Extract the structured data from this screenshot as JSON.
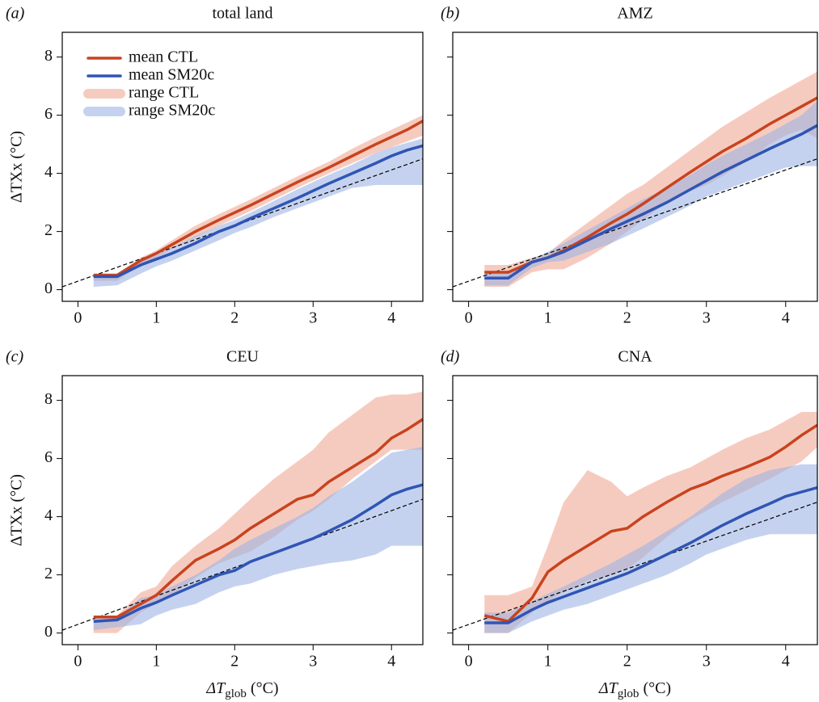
{
  "chart_data": [
    {
      "type": "line",
      "panel_label": "(a)",
      "title": "total land",
      "ylabel": "ΔTXx (°C)",
      "show_yticklabels": true,
      "legend": "upper left",
      "x": [
        0.2,
        0.5,
        0.8,
        1.0,
        1.2,
        1.5,
        1.8,
        2.0,
        2.2,
        2.5,
        2.8,
        3.0,
        3.2,
        3.5,
        3.8,
        4.0,
        4.2,
        4.4
      ],
      "series": [
        {
          "name": "mean CTL",
          "color": "#c8431e",
          "values": [
            0.5,
            0.5,
            1.0,
            1.25,
            1.55,
            2.0,
            2.4,
            2.65,
            2.9,
            3.3,
            3.7,
            3.95,
            4.2,
            4.6,
            5.0,
            5.25,
            5.5,
            5.8
          ]
        },
        {
          "name": "mean SM20c",
          "color": "#2f55b4",
          "values": [
            0.45,
            0.45,
            0.85,
            1.05,
            1.25,
            1.6,
            2.0,
            2.2,
            2.45,
            2.8,
            3.15,
            3.4,
            3.65,
            4.0,
            4.35,
            4.6,
            4.8,
            4.95
          ]
        }
      ],
      "ranges": [
        {
          "name": "range CTL",
          "color": "#f0a995",
          "lower": [
            0.3,
            0.3,
            0.85,
            1.1,
            1.4,
            1.8,
            2.2,
            2.45,
            2.7,
            3.1,
            3.5,
            3.75,
            4.0,
            4.35,
            4.7,
            4.9,
            5.1,
            5.3
          ],
          "upper": [
            0.55,
            0.55,
            1.1,
            1.35,
            1.7,
            2.2,
            2.6,
            2.85,
            3.1,
            3.5,
            3.9,
            4.15,
            4.4,
            4.85,
            5.25,
            5.5,
            5.75,
            6.0
          ]
        },
        {
          "name": "range SM20c",
          "color": "#9fb4e4",
          "lower": [
            0.1,
            0.15,
            0.55,
            0.8,
            1.0,
            1.35,
            1.7,
            1.95,
            2.15,
            2.5,
            2.8,
            3.0,
            3.2,
            3.5,
            3.6,
            3.6,
            3.6,
            3.6
          ],
          "upper": [
            0.55,
            0.55,
            1.0,
            1.2,
            1.45,
            1.85,
            2.2,
            2.4,
            2.65,
            3.05,
            3.45,
            3.7,
            3.95,
            4.3,
            4.7,
            4.9,
            5.05,
            5.2
          ]
        }
      ],
      "reference": {
        "x": [
          -0.2,
          4.4
        ],
        "y": [
          0.1,
          4.5
        ]
      },
      "xlim": [
        -0.2,
        4.4
      ],
      "ylim": [
        -0.4,
        8.85
      ],
      "xticks": [
        0,
        1,
        2,
        3,
        4
      ],
      "yticks": [
        0,
        2,
        4,
        6,
        8
      ]
    },
    {
      "type": "line",
      "panel_label": "(b)",
      "title": "AMZ",
      "show_yticklabels": false,
      "x": [
        0.2,
        0.5,
        0.8,
        1.0,
        1.2,
        1.5,
        1.8,
        2.0,
        2.2,
        2.5,
        2.8,
        3.0,
        3.2,
        3.5,
        3.8,
        4.0,
        4.2,
        4.4
      ],
      "series": [
        {
          "color": "#c8431e",
          "values": [
            0.6,
            0.6,
            0.95,
            1.1,
            1.35,
            1.8,
            2.3,
            2.6,
            2.95,
            3.5,
            4.05,
            4.4,
            4.75,
            5.2,
            5.7,
            6.0,
            6.3,
            6.6
          ]
        },
        {
          "color": "#2f55b4",
          "values": [
            0.4,
            0.4,
            0.95,
            1.1,
            1.3,
            1.7,
            2.1,
            2.35,
            2.6,
            3.0,
            3.45,
            3.75,
            4.05,
            4.45,
            4.85,
            5.1,
            5.35,
            5.65
          ]
        }
      ],
      "ranges": [
        {
          "color": "#f0a995",
          "lower": [
            0.1,
            0.1,
            0.6,
            0.7,
            0.7,
            1.1,
            1.6,
            2.0,
            2.4,
            3.0,
            3.4,
            3.6,
            3.9,
            4.4,
            5.0,
            5.3,
            5.5,
            5.2
          ],
          "upper": [
            0.85,
            0.85,
            1.1,
            1.25,
            1.7,
            2.3,
            2.9,
            3.3,
            3.6,
            4.2,
            4.8,
            5.2,
            5.6,
            6.1,
            6.6,
            6.9,
            7.2,
            7.5
          ]
        },
        {
          "color": "#9fb4e4",
          "lower": [
            0.15,
            0.15,
            0.75,
            0.95,
            1.0,
            1.3,
            1.6,
            1.85,
            2.1,
            2.5,
            2.9,
            3.2,
            3.4,
            3.7,
            4.0,
            4.2,
            4.25,
            4.25
          ],
          "upper": [
            0.6,
            0.6,
            1.05,
            1.3,
            1.6,
            2.05,
            2.5,
            2.8,
            3.1,
            3.5,
            3.95,
            4.3,
            4.6,
            5.0,
            5.4,
            5.7,
            6.0,
            6.5
          ]
        }
      ],
      "reference": {
        "x": [
          -0.2,
          4.4
        ],
        "y": [
          0.1,
          4.5
        ]
      },
      "xlim": [
        -0.2,
        4.4
      ],
      "ylim": [
        -0.4,
        8.85
      ],
      "xticks": [
        0,
        1,
        2,
        3,
        4
      ],
      "yticks": [
        0,
        2,
        4,
        6,
        8
      ]
    },
    {
      "type": "line",
      "panel_label": "(c)",
      "title": "CEU",
      "ylabel": "ΔTXx (°C)",
      "xlabel": [
        "ΔT",
        "glob",
        " (°C)"
      ],
      "show_yticklabels": true,
      "x": [
        0.2,
        0.5,
        0.8,
        1.0,
        1.2,
        1.5,
        1.8,
        2.0,
        2.2,
        2.5,
        2.8,
        3.0,
        3.2,
        3.5,
        3.8,
        4.0,
        4.2,
        4.4
      ],
      "series": [
        {
          "color": "#c8431e",
          "values": [
            0.55,
            0.55,
            1.0,
            1.3,
            1.8,
            2.5,
            2.9,
            3.2,
            3.6,
            4.1,
            4.6,
            4.75,
            5.2,
            5.7,
            6.2,
            6.7,
            7.0,
            7.35
          ]
        },
        {
          "color": "#2f55b4",
          "values": [
            0.4,
            0.45,
            0.85,
            1.05,
            1.3,
            1.65,
            2.0,
            2.15,
            2.45,
            2.75,
            3.05,
            3.25,
            3.5,
            3.9,
            4.4,
            4.75,
            4.95,
            5.1
          ]
        }
      ],
      "ranges": [
        {
          "color": "#f0a995",
          "lower": [
            0.0,
            0.0,
            0.7,
            1.0,
            1.3,
            1.9,
            2.4,
            2.6,
            2.8,
            3.3,
            3.9,
            4.2,
            4.6,
            5.3,
            5.9,
            6.3,
            6.3,
            6.3
          ],
          "upper": [
            0.6,
            0.6,
            1.4,
            1.6,
            2.3,
            3.0,
            3.6,
            4.1,
            4.6,
            5.3,
            5.9,
            6.3,
            6.9,
            7.5,
            8.1,
            8.2,
            8.2,
            8.3
          ]
        },
        {
          "color": "#9fb4e4",
          "lower": [
            0.1,
            0.2,
            0.3,
            0.6,
            0.8,
            1.0,
            1.4,
            1.6,
            1.7,
            2.0,
            2.2,
            2.3,
            2.4,
            2.5,
            2.7,
            3.0,
            3.0,
            3.0
          ],
          "upper": [
            0.55,
            0.55,
            1.2,
            1.3,
            1.6,
            2.0,
            2.5,
            2.9,
            3.2,
            3.6,
            4.0,
            4.3,
            4.7,
            5.2,
            5.8,
            6.2,
            6.3,
            6.4
          ]
        }
      ],
      "reference": {
        "x": [
          -0.2,
          4.4
        ],
        "y": [
          0.1,
          4.6
        ]
      },
      "xlim": [
        -0.2,
        4.4
      ],
      "ylim": [
        -0.4,
        8.85
      ],
      "xticks": [
        0,
        1,
        2,
        3,
        4
      ],
      "yticks": [
        0,
        2,
        4,
        6,
        8
      ]
    },
    {
      "type": "line",
      "panel_label": "(d)",
      "title": "CNA",
      "xlabel": [
        "ΔT",
        "glob",
        " (°C)"
      ],
      "show_yticklabels": false,
      "x": [
        0.2,
        0.5,
        0.8,
        1.0,
        1.2,
        1.5,
        1.8,
        2.0,
        2.2,
        2.5,
        2.8,
        3.0,
        3.2,
        3.5,
        3.8,
        4.0,
        4.2,
        4.4
      ],
      "series": [
        {
          "color": "#c8431e",
          "values": [
            0.6,
            0.4,
            1.2,
            2.1,
            2.5,
            3.0,
            3.5,
            3.6,
            4.0,
            4.5,
            4.95,
            5.15,
            5.4,
            5.7,
            6.05,
            6.4,
            6.8,
            7.15
          ]
        },
        {
          "color": "#2f55b4",
          "values": [
            0.35,
            0.35,
            0.8,
            1.05,
            1.25,
            1.55,
            1.85,
            2.05,
            2.3,
            2.7,
            3.1,
            3.4,
            3.7,
            4.1,
            4.45,
            4.7,
            4.85,
            5.0
          ]
        }
      ],
      "ranges": [
        {
          "color": "#f0a995",
          "lower": [
            0.0,
            0.0,
            0.7,
            1.1,
            1.4,
            1.8,
            2.0,
            2.2,
            2.6,
            3.3,
            3.9,
            4.2,
            4.5,
            4.9,
            5.3,
            5.6,
            5.9,
            6.4
          ],
          "upper": [
            1.3,
            1.3,
            1.6,
            3.0,
            4.5,
            5.6,
            5.2,
            4.7,
            5.0,
            5.4,
            5.7,
            6.0,
            6.3,
            6.7,
            7.0,
            7.3,
            7.6,
            7.6
          ]
        },
        {
          "color": "#9fb4e4",
          "lower": [
            0.0,
            0.0,
            0.4,
            0.6,
            0.8,
            1.0,
            1.3,
            1.5,
            1.7,
            2.0,
            2.4,
            2.7,
            2.9,
            3.2,
            3.4,
            3.4,
            3.4,
            3.4
          ],
          "upper": [
            0.7,
            0.7,
            1.1,
            1.35,
            1.6,
            2.0,
            2.4,
            2.7,
            3.0,
            3.5,
            4.0,
            4.4,
            4.8,
            5.3,
            5.6,
            5.7,
            5.8,
            5.8
          ]
        }
      ],
      "reference": {
        "x": [
          -0.2,
          4.4
        ],
        "y": [
          0.1,
          4.5
        ]
      },
      "xlim": [
        -0.2,
        4.4
      ],
      "ylim": [
        -0.4,
        8.85
      ],
      "xticks": [
        0,
        1,
        2,
        3,
        4
      ],
      "yticks": [
        0,
        2,
        4,
        6,
        8
      ]
    }
  ]
}
